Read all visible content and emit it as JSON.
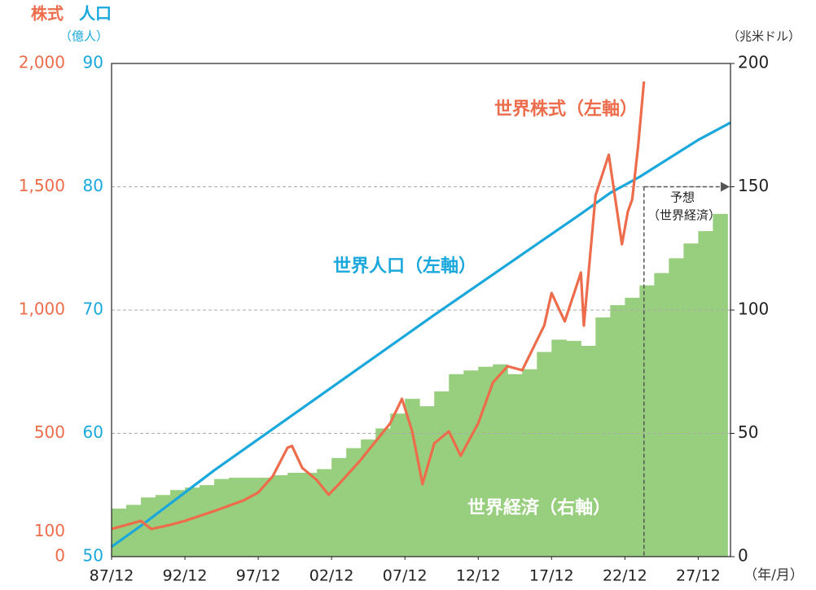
{
  "chart_data": {
    "type": "combo",
    "header": {
      "stock": "株式",
      "population": "人口",
      "population_unit": "（億人）",
      "gdp_unit": "（兆米ドル）",
      "x_unit": "（年/月）"
    },
    "annotations": {
      "stock": "世界株式（左軸）",
      "population": "世界人口（左軸）",
      "gdp": "世界経済（右軸）",
      "forecast": "予想",
      "forecast_sub": "（世界経済）"
    },
    "xlim": [
      1988,
      2030.2
    ],
    "xticks": [
      {
        "value": 1988,
        "label": "87/12"
      },
      {
        "value": 1993,
        "label": "92/12"
      },
      {
        "value": 1998,
        "label": "97/12"
      },
      {
        "value": 2003,
        "label": "02/12"
      },
      {
        "value": 2008,
        "label": "07/12"
      },
      {
        "value": 2013,
        "label": "12/12"
      },
      {
        "value": 2018,
        "label": "17/12"
      },
      {
        "value": 2023,
        "label": "22/12"
      },
      {
        "value": 2028,
        "label": "27/12"
      }
    ],
    "ylim": [
      0,
      2000
    ],
    "yticks": [
      0,
      100,
      500,
      {
        "value": 1000,
        "label": "1,000"
      },
      {
        "value": 1500,
        "label": "1,500"
      },
      {
        "value": 2000,
        "label": "2,000"
      }
    ],
    "y3lim": [
      50,
      90
    ],
    "y3ticks": [
      50,
      60,
      70,
      80,
      90
    ],
    "y2lim": [
      0,
      200
    ],
    "y2ticks": [
      0,
      50,
      100,
      150,
      200
    ],
    "grid": true,
    "series": [
      {
        "name": "世界経済",
        "axis": "y2",
        "kind": "step",
        "color": "#98cf7e",
        "x": [
          1988,
          1989,
          1990,
          1991,
          1992,
          1993,
          1994,
          1995,
          1996,
          1997,
          1998,
          1999,
          2000,
          2001,
          2002,
          2003,
          2004,
          2005,
          2006,
          2007,
          2008,
          2009,
          2010,
          2011,
          2012,
          2013,
          2014,
          2015,
          2016,
          2017,
          2018,
          2019,
          2020,
          2021,
          2022,
          2023,
          2024,
          2025,
          2026,
          2027,
          2028,
          2029
        ],
        "values": [
          19.5,
          21,
          24,
          25,
          27,
          28,
          29,
          31.5,
          32,
          32,
          32,
          33,
          34,
          34,
          35.5,
          40,
          44,
          47.5,
          52,
          58,
          64,
          61,
          67,
          74,
          75.5,
          77,
          78,
          74,
          76,
          83,
          88,
          87.5,
          85.5,
          97,
          102,
          105,
          110,
          115,
          121,
          127,
          132,
          139
        ]
      },
      {
        "name": "世界人口",
        "axis": "y3",
        "kind": "line",
        "color": "#1aa8dc",
        "x": [
          1988,
          1990,
          1995,
          2000,
          2005,
          2010,
          2015,
          2020,
          2022,
          2024,
          2026,
          2028,
          2030.2
        ],
        "values": [
          50.8,
          52.5,
          57,
          61.2,
          65.4,
          69.6,
          73.7,
          77.8,
          79.5,
          80.8,
          82.3,
          83.8,
          85.2
        ]
      },
      {
        "name": "世界株式",
        "axis": "y",
        "kind": "line",
        "color": "#ec6c4b",
        "x": [
          1988,
          1990,
          1990.7,
          1992,
          1993,
          1995,
          1997,
          1998,
          1999,
          2000,
          2000.3,
          2001,
          2002,
          2002.8,
          2003.5,
          2005,
          2007,
          2007.8,
          2008.5,
          2009.2,
          2010,
          2011,
          2011.8,
          2013,
          2014,
          2015,
          2016,
          2017.5,
          2018,
          2018.9,
          2020,
          2020.2,
          2021,
          2021.9,
          2022.8,
          2023.2,
          2023.5,
          2023.9,
          2024.3
        ],
        "values": [
          112,
          145,
          112,
          129,
          145,
          185,
          228,
          260,
          327,
          442,
          449,
          360,
          310,
          251,
          294,
          393,
          541,
          640,
          508,
          294,
          459,
          508,
          409,
          541,
          706,
          772,
          756,
          937,
          1069,
          954,
          1152,
          937,
          1465,
          1630,
          1267,
          1399,
          1449,
          1663,
          1927
        ]
      }
    ]
  }
}
